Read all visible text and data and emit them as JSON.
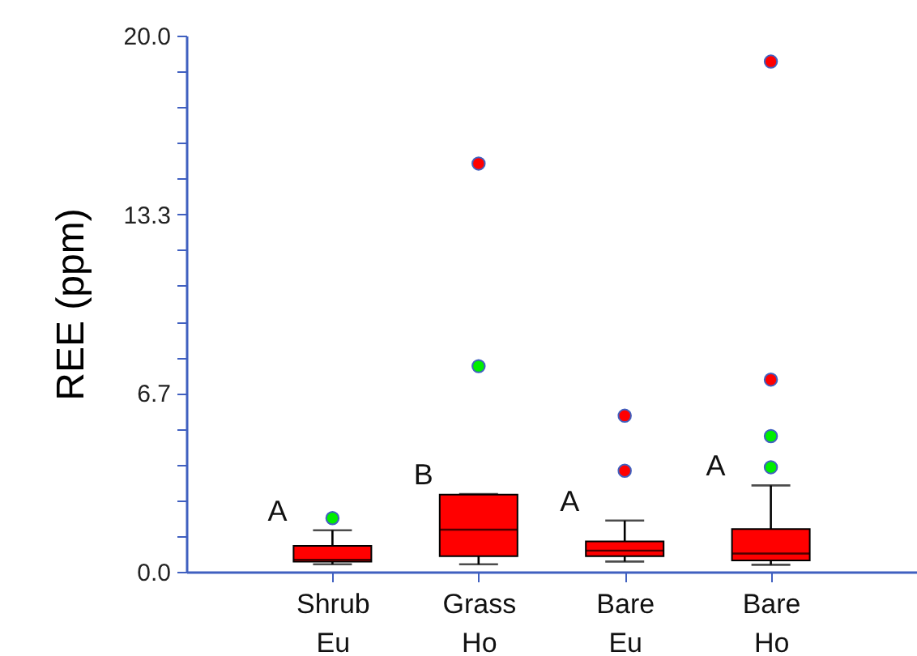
{
  "chart_data": {
    "type": "box",
    "ylabel": "REE (ppm)",
    "categories": [
      "Shrub\nEu",
      "Grass\nHo",
      "Bare\nEu",
      "Bare\nHo"
    ],
    "ylim": [
      0,
      20
    ],
    "yticks": [
      {
        "value": 0,
        "label": "0.0"
      },
      {
        "value": 1.333,
        "label": null
      },
      {
        "value": 2.667,
        "label": null
      },
      {
        "value": 4,
        "label": null
      },
      {
        "value": 5.333,
        "label": null
      },
      {
        "value": 6.667,
        "label": "6.7"
      },
      {
        "value": 8,
        "label": null
      },
      {
        "value": 9.333,
        "label": null
      },
      {
        "value": 10.667,
        "label": null
      },
      {
        "value": 12,
        "label": null
      },
      {
        "value": 13.333,
        "label": "13.3"
      },
      {
        "value": 14.667,
        "label": null
      },
      {
        "value": 16,
        "label": null
      },
      {
        "value": 17.333,
        "label": null
      },
      {
        "value": 18.667,
        "label": null
      },
      {
        "value": 20,
        "label": "20.0"
      }
    ],
    "grid": false,
    "series": [
      {
        "color": "#ff0000",
        "boxes": [
          {
            "low": 0.28,
            "q1": 0.38,
            "median": 0.45,
            "q3": 0.97,
            "high": 1.55
          },
          {
            "low": 0.28,
            "q1": 0.58,
            "median": 1.57,
            "q3": 2.88,
            "high": 2.9
          },
          {
            "low": 0.38,
            "q1": 0.58,
            "median": 0.79,
            "q3": 1.13,
            "high": 1.91
          },
          {
            "low": 0.26,
            "q1": 0.42,
            "median": 0.68,
            "q3": 1.59,
            "high": 3.22
          }
        ]
      },
      {
        "type": "scatter",
        "color": "#00ee00",
        "x": [
          "Shrub\nEu",
          "Grass\nHo",
          "Bare\nHo",
          "Bare\nHo"
        ],
        "values": [
          2.0,
          7.67,
          5.06,
          3.9
        ]
      },
      {
        "type": "scatter",
        "color": "#ff0000",
        "x": [
          "Grass\nHo",
          "Bare\nEu",
          "Bare\nEu",
          "Bare\nHo",
          "Bare\nHo"
        ],
        "values": [
          15.23,
          5.82,
          3.77,
          7.17,
          19.03
        ]
      }
    ],
    "annotations": [
      "A",
      "B",
      "A",
      "A"
    ]
  }
}
